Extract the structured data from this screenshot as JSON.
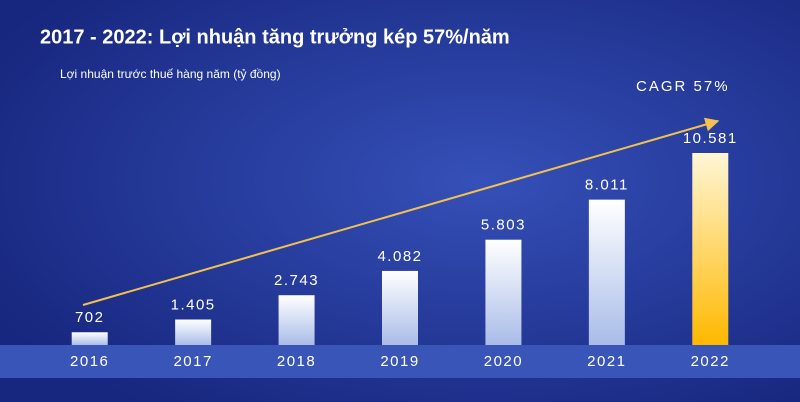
{
  "chart_data": {
    "type": "bar",
    "title": "2017 - 2022: Lợi nhuận tăng trưởng kép 57%/năm",
    "subtitle": "Lợi nhuận trước thuế hàng năm (tỷ đồng)",
    "annotation": "CAGR 57%",
    "categories": [
      "2016",
      "2017",
      "2018",
      "2019",
      "2020",
      "2021",
      "2022"
    ],
    "values": [
      702,
      1405,
      2743,
      4082,
      5803,
      8011,
      10581
    ],
    "value_labels": [
      "702",
      "1.405",
      "2.743",
      "4.082",
      "5.803",
      "8.011",
      "10.581"
    ],
    "colors": [
      "#ffffff",
      "#ffffff",
      "#ffffff",
      "#ffffff",
      "#ffffff",
      "#ffffff",
      "#ffc20e"
    ]
  }
}
